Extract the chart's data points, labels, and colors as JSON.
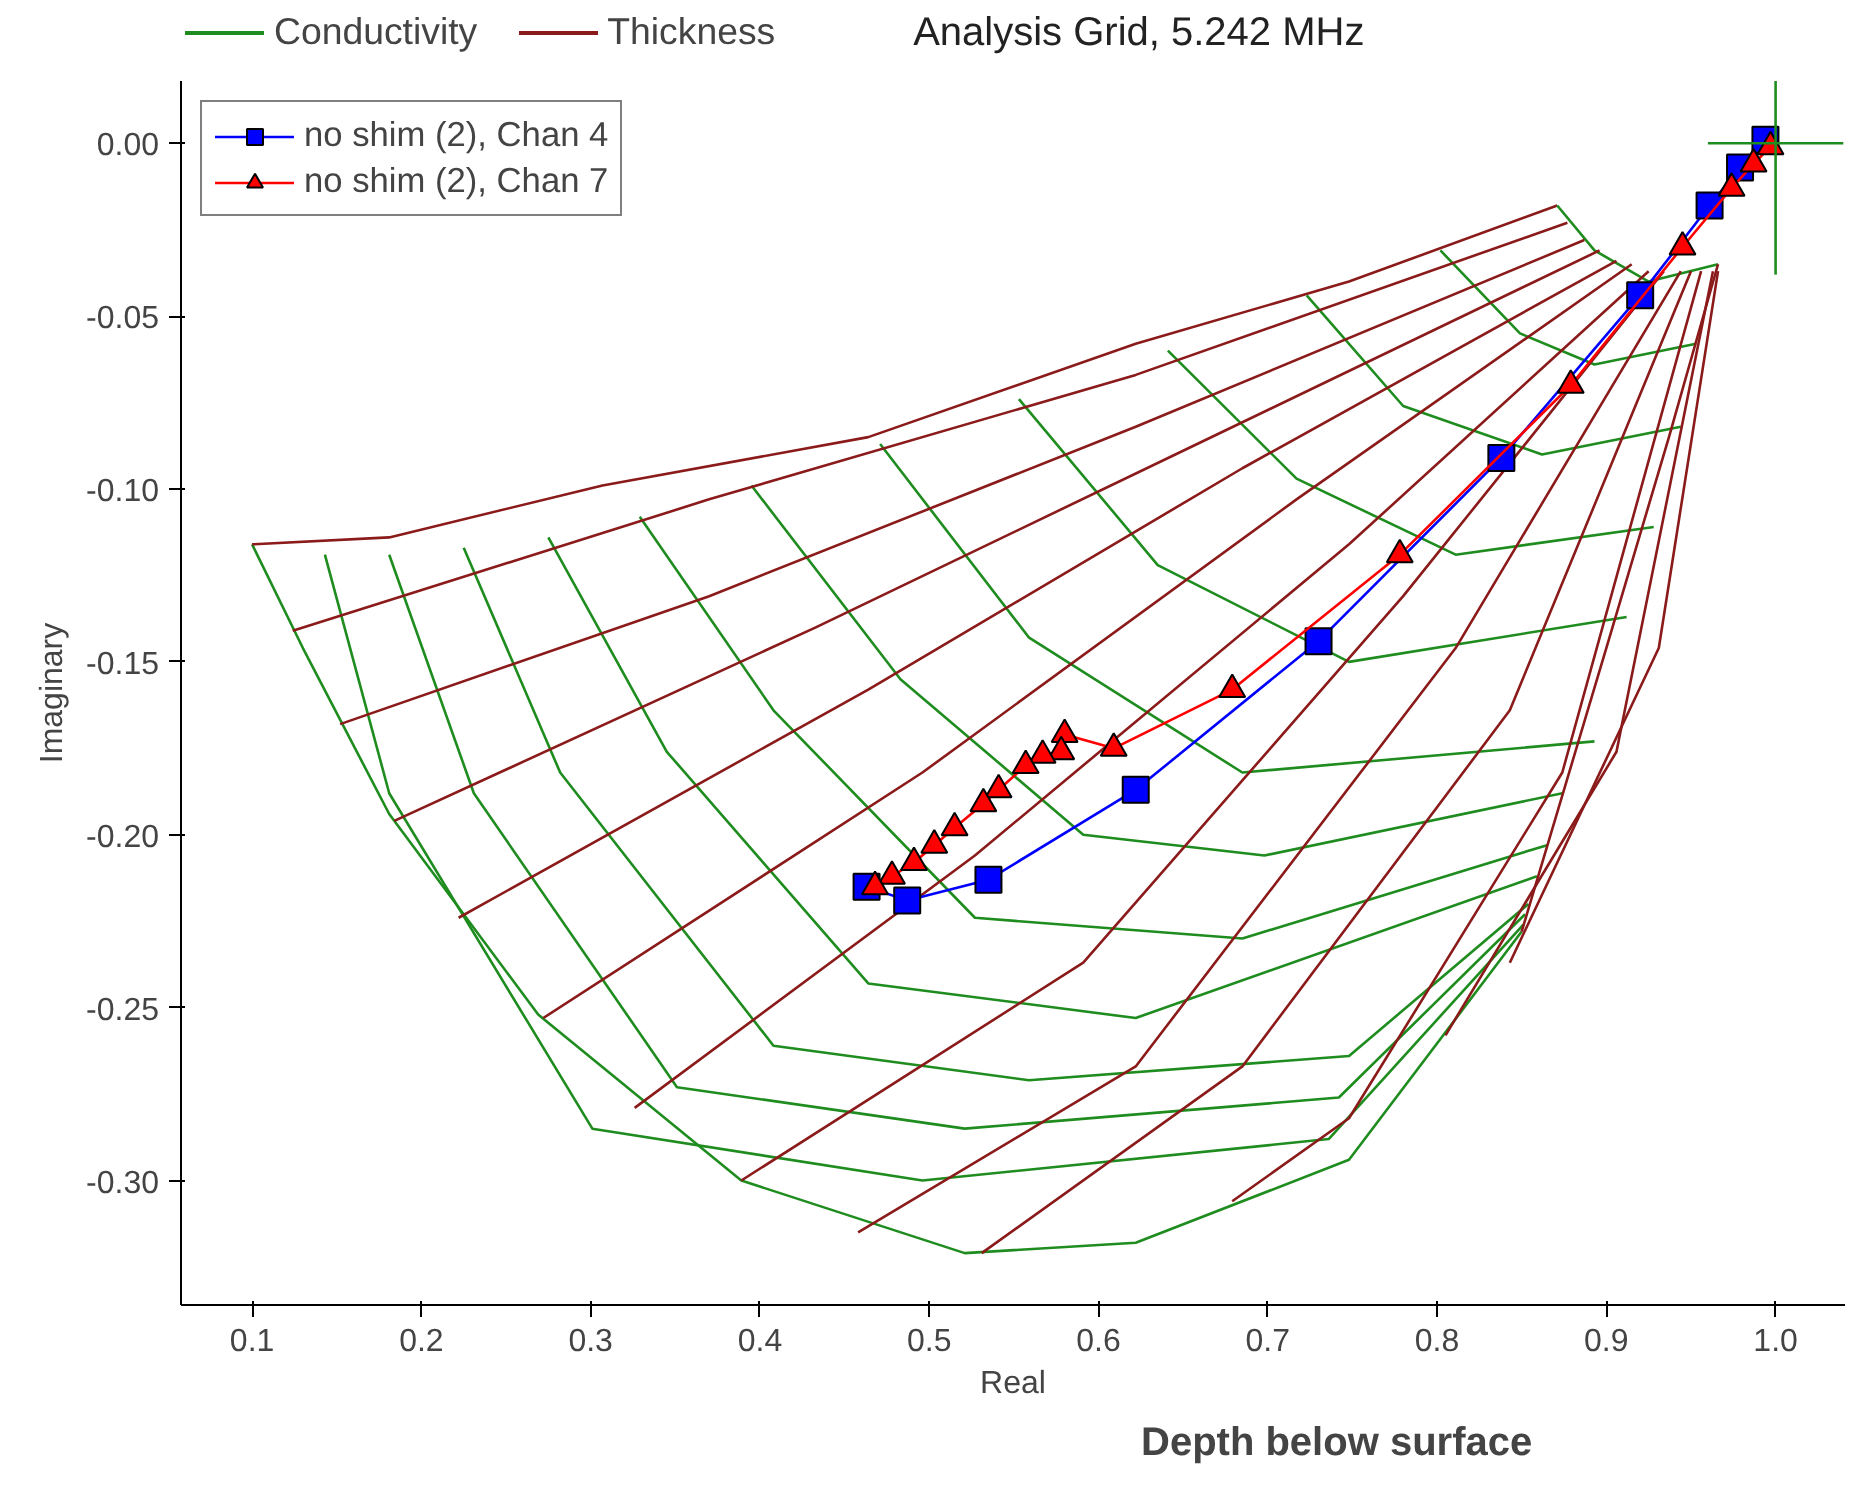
{
  "chart_data": {
    "type": "line",
    "title": "Analysis Grid, 5.242 MHz",
    "xlabel": "Real",
    "ylabel": "Imaginary",
    "annotations": [
      "Depth below surface"
    ],
    "xlim": [
      0.058,
      1.041
    ],
    "ylim": [
      -0.336,
      0.018
    ],
    "xticks": [
      {
        "value": 0.1,
        "label": "0.1"
      },
      {
        "value": 0.2,
        "label": "0.2"
      },
      {
        "value": 0.3,
        "label": "0.3"
      },
      {
        "value": 0.4,
        "label": "0.4"
      },
      {
        "value": 0.5,
        "label": "0.5"
      },
      {
        "value": 0.6,
        "label": "0.6"
      },
      {
        "value": 0.7,
        "label": "0.7"
      },
      {
        "value": 0.8,
        "label": "0.8"
      },
      {
        "value": 0.9,
        "label": "0.9"
      },
      {
        "value": 1.0,
        "label": "1.0"
      }
    ],
    "yticks": [
      {
        "value": 0,
        "label": "0.00"
      },
      {
        "value": -0.05,
        "label": "-0.05"
      },
      {
        "value": -0.1,
        "label": "-0.10"
      },
      {
        "value": -0.15,
        "label": "-0.15"
      },
      {
        "value": -0.2,
        "label": "-0.20"
      },
      {
        "value": -0.25,
        "label": "-0.25"
      },
      {
        "value": -0.3,
        "label": "-0.30"
      }
    ],
    "grid": false,
    "legend": "top left",
    "marker": "none",
    "line_style": "solid",
    "series": [
      {
        "name": "Conductivity",
        "type": "line",
        "color": "#1e8c1e",
        "x": [
          0.1,
          0.13,
          0.181,
          0.269,
          0.389,
          0.521,
          0.622,
          0.748,
          0.85
        ],
        "values": [
          -0.116,
          -0.146,
          -0.194,
          -0.252,
          -0.3,
          -0.321,
          -0.318,
          -0.294,
          -0.228
        ]
      },
      {
        "name": "Thickness",
        "type": "line",
        "color": "#8b1a1a",
        "x": [
          0.1,
          0.181,
          0.307,
          0.464,
          0.622,
          0.748,
          0.871
        ],
        "values": [
          -0.116,
          -0.114,
          -0.099,
          -0.085,
          -0.058,
          -0.04,
          -0.018
        ]
      },
      {
        "type": "line",
        "color": "#1e8c1e",
        "x": [
          0.871,
          0.893,
          0.925,
          0.966
        ],
        "values": [
          -0.018,
          -0.031,
          -0.04,
          -0.035
        ]
      },
      {
        "type": "line",
        "color": "#1e8c1e",
        "x": [
          0.802,
          0.849,
          0.893,
          0.953
        ],
        "values": [
          -0.031,
          -0.055,
          -0.064,
          -0.058
        ]
      },
      {
        "type": "line",
        "color": "#1e8c1e",
        "x": [
          0.723,
          0.78,
          0.862,
          0.944
        ],
        "values": [
          -0.044,
          -0.076,
          -0.09,
          -0.082
        ]
      },
      {
        "type": "line",
        "color": "#1e8c1e",
        "x": [
          0.641,
          0.717,
          0.811,
          0.928
        ],
        "values": [
          -0.06,
          -0.097,
          -0.119,
          -0.111
        ]
      },
      {
        "type": "line",
        "color": "#1e8c1e",
        "x": [
          0.553,
          0.635,
          0.748,
          0.912
        ],
        "values": [
          -0.074,
          -0.122,
          -0.15,
          -0.137
        ]
      },
      {
        "type": "line",
        "color": "#1e8c1e",
        "x": [
          0.471,
          0.559,
          0.685,
          0.893
        ],
        "values": [
          -0.087,
          -0.143,
          -0.182,
          -0.173
        ]
      },
      {
        "type": "line",
        "color": "#1e8c1e",
        "x": [
          0.395,
          0.483,
          0.591,
          0.698,
          0.874
        ],
        "values": [
          -0.099,
          -0.155,
          -0.2,
          -0.206,
          -0.188
        ]
      },
      {
        "type": "line",
        "color": "#1e8c1e",
        "x": [
          0.329,
          0.408,
          0.527,
          0.685,
          0.865
        ],
        "values": [
          -0.108,
          -0.164,
          -0.224,
          -0.23,
          -0.203
        ]
      },
      {
        "type": "line",
        "color": "#1e8c1e",
        "x": [
          0.275,
          0.345,
          0.464,
          0.622,
          0.859
        ],
        "values": [
          -0.114,
          -0.176,
          -0.243,
          -0.253,
          -0.212
        ]
      },
      {
        "type": "line",
        "color": "#1e8c1e",
        "x": [
          0.225,
          0.282,
          0.408,
          0.559,
          0.748,
          0.854
        ],
        "values": [
          -0.117,
          -0.182,
          -0.261,
          -0.271,
          -0.264,
          -0.22
        ]
      },
      {
        "type": "line",
        "color": "#1e8c1e",
        "x": [
          0.181,
          0.231,
          0.351,
          0.521,
          0.742,
          0.852
        ],
        "values": [
          -0.119,
          -0.188,
          -0.273,
          -0.285,
          -0.276,
          -0.223
        ]
      },
      {
        "type": "line",
        "color": "#1e8c1e",
        "x": [
          0.143,
          0.181,
          0.301,
          0.496,
          0.736,
          0.851
        ],
        "values": [
          -0.119,
          -0.188,
          -0.285,
          -0.3,
          -0.288,
          -0.226
        ]
      },
      {
        "type": "line",
        "color": "#8b1a1a",
        "x": [
          0.966,
          0.937,
          0.9,
          0.85
        ],
        "values": [
          -0.035,
          -0.085,
          -0.146,
          -0.228
        ]
      },
      {
        "type": "line",
        "color": "#8b1a1a",
        "x": [
          0.877,
          0.622,
          0.37,
          0.124
        ],
        "values": [
          -0.023,
          -0.067,
          -0.103,
          -0.141
        ]
      },
      {
        "type": "line",
        "color": "#8b1a1a",
        "x": [
          0.887,
          0.622,
          0.37,
          0.152
        ],
        "values": [
          -0.028,
          -0.082,
          -0.131,
          -0.168
        ]
      },
      {
        "type": "line",
        "color": "#8b1a1a",
        "x": [
          0.896,
          0.654,
          0.433,
          0.184
        ],
        "values": [
          -0.031,
          -0.088,
          -0.14,
          -0.196
        ]
      },
      {
        "type": "line",
        "color": "#8b1a1a",
        "x": [
          0.906,
          0.685,
          0.464,
          0.222
        ],
        "values": [
          -0.034,
          -0.094,
          -0.158,
          -0.224
        ]
      },
      {
        "type": "line",
        "color": "#8b1a1a",
        "x": [
          0.915,
          0.717,
          0.496,
          0.272
        ],
        "values": [
          -0.035,
          -0.103,
          -0.182,
          -0.253
        ]
      },
      {
        "type": "line",
        "color": "#8b1a1a",
        "x": [
          0.925,
          0.748,
          0.527,
          0.326
        ],
        "values": [
          -0.037,
          -0.116,
          -0.206,
          -0.279
        ]
      },
      {
        "type": "line",
        "color": "#8b1a1a",
        "x": [
          0.934,
          0.78,
          0.591,
          0.389
        ],
        "values": [
          -0.037,
          -0.131,
          -0.237,
          -0.3
        ]
      },
      {
        "type": "line",
        "color": "#8b1a1a",
        "x": [
          0.944,
          0.811,
          0.622,
          0.458
        ],
        "values": [
          -0.037,
          -0.146,
          -0.267,
          -0.315
        ]
      },
      {
        "type": "line",
        "color": "#8b1a1a",
        "x": [
          0.95,
          0.843,
          0.685,
          0.531
        ],
        "values": [
          -0.037,
          -0.164,
          -0.267,
          -0.321
        ]
      },
      {
        "type": "line",
        "color": "#8b1a1a",
        "x": [
          0.956,
          0.874,
          0.748,
          0.679
        ],
        "values": [
          -0.037,
          -0.182,
          -0.282,
          -0.306
        ]
      },
      {
        "type": "line",
        "color": "#8b1a1a",
        "x": [
          0.963,
          0.906,
          0.805
        ],
        "values": [
          -0.037,
          -0.176,
          -0.258
        ]
      },
      {
        "type": "line",
        "color": "#8b1a1a",
        "x": [
          0.966,
          0.931,
          0.843
        ],
        "values": [
          -0.037,
          -0.146,
          -0.237
        ]
      },
      {
        "name": "no shim (2), Chan 4",
        "type": "line",
        "marker": "square",
        "color": "#0000ff",
        "x": [
          0.994,
          0.979,
          0.961,
          0.92,
          0.838,
          0.73,
          0.622,
          0.535,
          0.487,
          0.463
        ],
        "values": [
          0.001,
          -0.007,
          -0.018,
          -0.044,
          -0.091,
          -0.144,
          -0.187,
          -0.213,
          -0.219,
          -0.215
        ]
      },
      {
        "name": "no shim (2), Chan 7",
        "type": "line",
        "marker": "triangle",
        "color": "#ff0000",
        "x": [
          0.997,
          0.987,
          0.974,
          0.945,
          0.879,
          0.778,
          0.679,
          0.609,
          0.58,
          0.578,
          0.567,
          0.557,
          0.541,
          0.532,
          0.515,
          0.503,
          0.491,
          0.478,
          0.468
        ],
        "values": [
          -0.001,
          -0.006,
          -0.013,
          -0.03,
          -0.07,
          -0.119,
          -0.158,
          -0.175,
          -0.171,
          -0.176,
          -0.177,
          -0.18,
          -0.187,
          -0.191,
          -0.198,
          -0.203,
          -0.208,
          -0.212,
          -0.215
        ]
      },
      {
        "color": "#1e8c1e",
        "x": [
          0.96,
          1.04
        ],
        "values": [
          0.0,
          0.0
        ]
      },
      {
        "color": "#1e8c1e",
        "x": [
          1.0,
          1.0
        ],
        "values": [
          0.018,
          -0.038
        ]
      }
    ]
  }
}
